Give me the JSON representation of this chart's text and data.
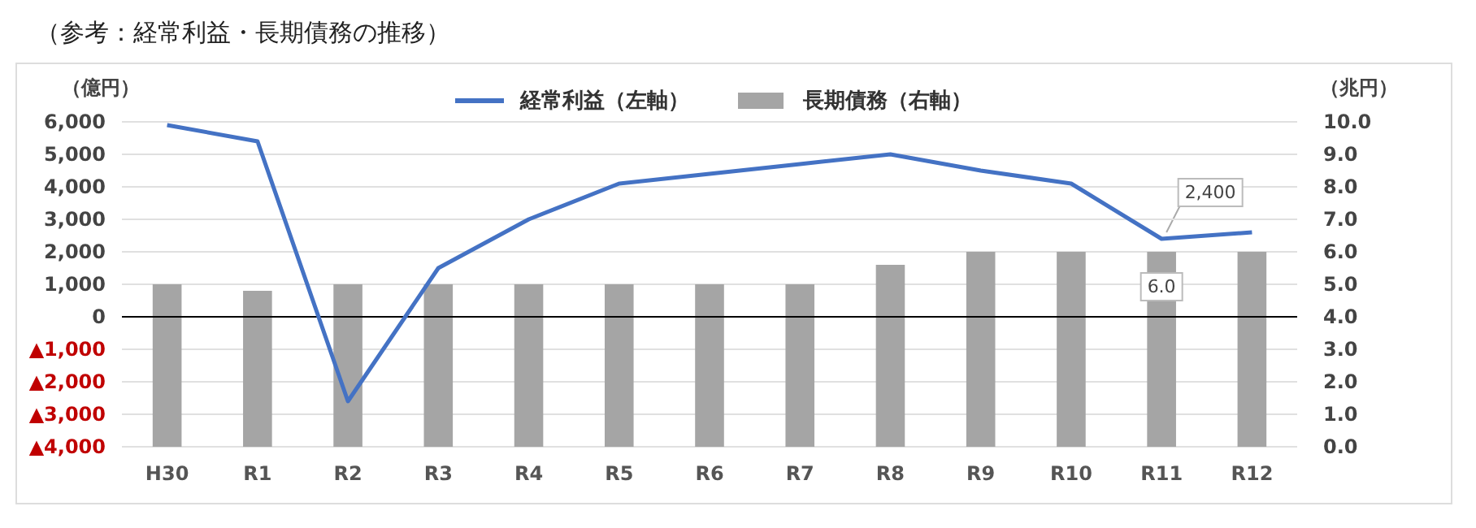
{
  "chart_data": {
    "type": "bar",
    "title": "（参考：経常利益・長期債務の推移）",
    "ylabel": "（億円）",
    "y2label": "（兆円）",
    "categories": [
      "H30",
      "R1",
      "R2",
      "R3",
      "R4",
      "R5",
      "R6",
      "R7",
      "R8",
      "R9",
      "R10",
      "R11",
      "R12"
    ],
    "series": [
      {
        "name": "経常利益（左軸）",
        "type": "line",
        "color": "#4472c4",
        "values": [
          5900,
          5400,
          -2600,
          1500,
          3000,
          4100,
          4400,
          4700,
          5000,
          4500,
          4100,
          2400,
          2600
        ],
        "value_labels": [
          null,
          null,
          null,
          null,
          null,
          null,
          null,
          null,
          null,
          null,
          null,
          "2,400",
          null
        ]
      },
      {
        "name": "長期債務（右軸）",
        "axis": "y2",
        "color": "#a5a5a5",
        "values": [
          5.0,
          4.8,
          5.0,
          5.0,
          5.0,
          5.0,
          5.0,
          5.0,
          5.6,
          6.0,
          6.0,
          6.0,
          6.0
        ],
        "value_labels": [
          null,
          null,
          null,
          null,
          null,
          null,
          null,
          null,
          null,
          null,
          null,
          "6.0",
          null
        ]
      }
    ],
    "ylim": [
      -4000,
      6000
    ],
    "yticks": [
      {
        "value": -4000,
        "label": "▲4,000"
      },
      {
        "value": -3000,
        "label": "▲3,000"
      },
      {
        "value": -2000,
        "label": "▲2,000"
      },
      {
        "value": -1000,
        "label": "▲1,000"
      },
      0,
      {
        "value": 1000,
        "label": "1,000"
      },
      {
        "value": 2000,
        "label": "2,000"
      },
      {
        "value": 3000,
        "label": "3,000"
      },
      {
        "value": 4000,
        "label": "4,000"
      },
      {
        "value": 5000,
        "label": "5,000"
      },
      {
        "value": 6000,
        "label": "6,000"
      }
    ],
    "y2lim": [
      0,
      10
    ],
    "y2ticks": [
      {
        "value": 0,
        "label": "0.0"
      },
      {
        "value": 1,
        "label": "1.0"
      },
      {
        "value": 2,
        "label": "2.0"
      },
      {
        "value": 3,
        "label": "3.0"
      },
      {
        "value": 4,
        "label": "4.0"
      },
      {
        "value": 5,
        "label": "5.0"
      },
      {
        "value": 6,
        "label": "6.0"
      },
      {
        "value": 7,
        "label": "7.0"
      },
      {
        "value": 8,
        "label": "8.0"
      },
      {
        "value": 9,
        "label": "9.0"
      },
      {
        "value": 10,
        "label": "10.0"
      }
    ],
    "grid": "y",
    "legend": "top"
  }
}
